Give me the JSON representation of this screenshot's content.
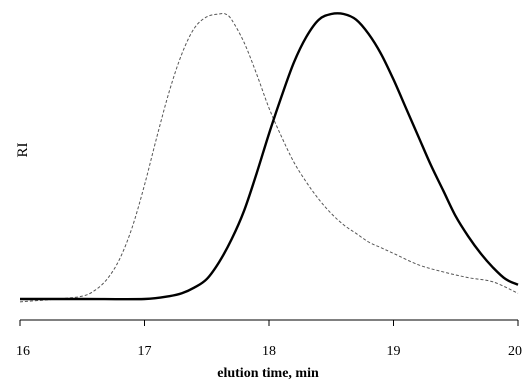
{
  "chart_data": {
    "type": "line",
    "title": "",
    "xlabel": "elution time, min",
    "ylabel": "RI",
    "xlim": [
      16,
      20
    ],
    "ylim": [
      0,
      1
    ],
    "x_ticks": [
      "16",
      "17",
      "18",
      "19",
      "20"
    ],
    "y_ticks": [],
    "grid": false,
    "legend": "none",
    "series": [
      {
        "style": "dashed",
        "color": "#555555",
        "x": [
          16.0,
          16.3,
          16.5,
          16.6,
          16.7,
          16.8,
          16.9,
          17.0,
          17.1,
          17.2,
          17.3,
          17.4,
          17.5,
          17.6,
          17.65,
          17.7,
          17.8,
          17.9,
          18.0,
          18.1,
          18.2,
          18.3,
          18.4,
          18.5,
          18.6,
          18.7,
          18.8,
          18.9,
          19.0,
          19.2,
          19.4,
          19.6,
          19.8,
          20.0
        ],
        "y": [
          -0.01,
          0.0,
          0.01,
          0.03,
          0.07,
          0.14,
          0.25,
          0.4,
          0.57,
          0.73,
          0.86,
          0.95,
          0.99,
          1.0,
          1.0,
          0.98,
          0.9,
          0.79,
          0.67,
          0.57,
          0.48,
          0.41,
          0.35,
          0.3,
          0.26,
          0.23,
          0.2,
          0.18,
          0.16,
          0.12,
          0.095,
          0.075,
          0.06,
          0.02
        ]
      },
      {
        "style": "solid",
        "color": "#000000",
        "x": [
          16.0,
          16.5,
          17.0,
          17.2,
          17.3,
          17.4,
          17.5,
          17.6,
          17.7,
          17.8,
          17.9,
          18.0,
          18.1,
          18.2,
          18.3,
          18.4,
          18.5,
          18.6,
          18.7,
          18.8,
          18.9,
          19.0,
          19.1,
          19.2,
          19.3,
          19.4,
          19.5,
          19.6,
          19.7,
          19.8,
          19.9,
          20.0
        ],
        "y": [
          0.0,
          0.0,
          0.0,
          0.01,
          0.02,
          0.04,
          0.07,
          0.13,
          0.21,
          0.31,
          0.44,
          0.58,
          0.71,
          0.83,
          0.92,
          0.98,
          1.0,
          1.0,
          0.98,
          0.93,
          0.86,
          0.77,
          0.67,
          0.57,
          0.47,
          0.38,
          0.29,
          0.22,
          0.16,
          0.11,
          0.07,
          0.05
        ]
      }
    ]
  }
}
